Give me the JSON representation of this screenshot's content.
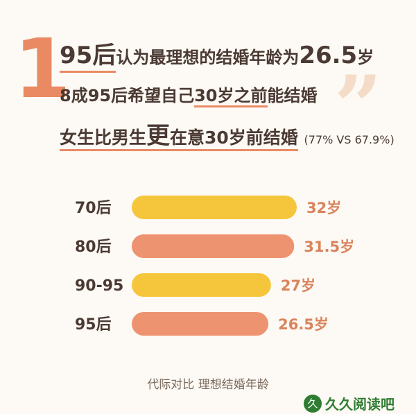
{
  "headline": {
    "number": "1",
    "line1_a": "95后",
    "line1_b": "认为最理想的结婚年龄为",
    "line1_c": "26.5",
    "line1_d": "岁",
    "line2_a": "8成95后希望自己",
    "line2_b": "30岁之前",
    "line2_c": "能结婚",
    "line3_a": "女生比男生",
    "line3_b": "更",
    "line3_c": "在意30岁前结婚",
    "line3_d": "(77% VS 67.9%)",
    "quote_mark": "”"
  },
  "chart_data": {
    "type": "bar",
    "orientation": "horizontal",
    "categories": [
      "70后",
      "80后",
      "90-95",
      "95后"
    ],
    "values": [
      32,
      31.5,
      27,
      26.5
    ],
    "value_labels": [
      "32岁",
      "31.5岁",
      "27岁",
      "26.5岁"
    ],
    "colors": [
      "#f5c53c",
      "#ee9370",
      "#f5c53c",
      "#ee9370"
    ],
    "label_color": "#d9835c",
    "title": "代际对比  理想结婚年龄"
  },
  "watermark": {
    "text": "久久阅读吧",
    "mark": "久"
  }
}
